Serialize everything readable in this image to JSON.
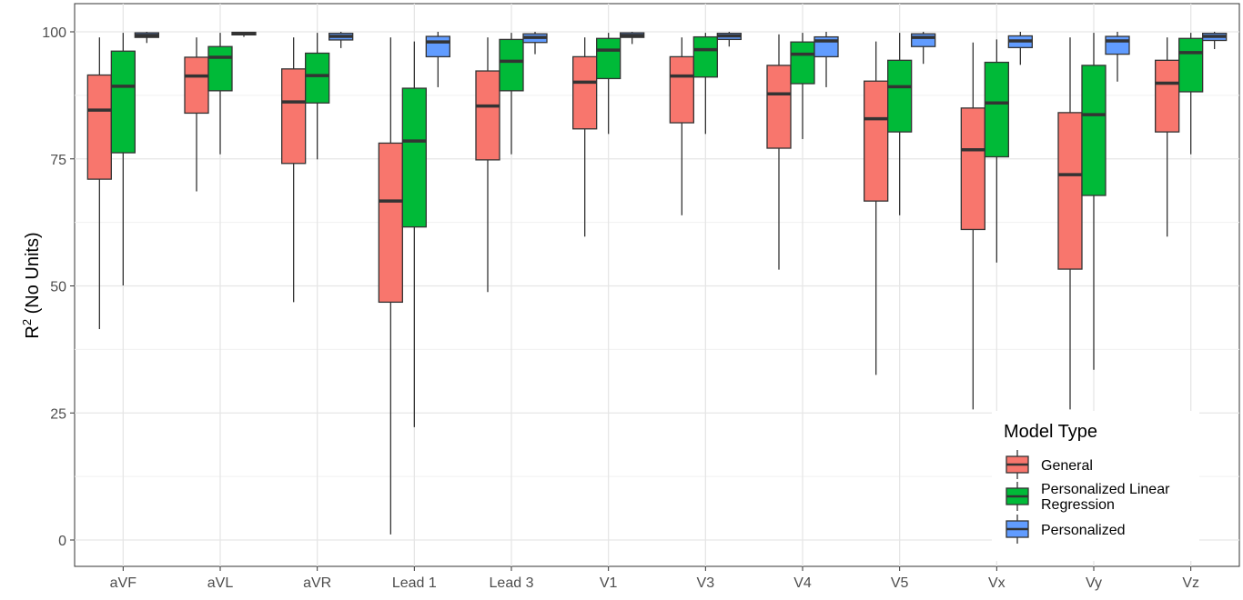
{
  "chart_data": {
    "type": "boxplot",
    "title": "",
    "xlabel": "",
    "ylabel_main": "R",
    "ylabel_sup": "2",
    "ylabel_rest": " (No Units)",
    "ylim": [
      0,
      100
    ],
    "yticks": [
      0,
      25,
      50,
      75,
      100
    ],
    "grid": true,
    "legend_position": "bottom-right",
    "legend_title": "Model Type",
    "categories": [
      "aVF",
      "aVL",
      "aVR",
      "Lead 1",
      "Lead 3",
      "V1",
      "V3",
      "V4",
      "V5",
      "Vx",
      "Vy",
      "Vz"
    ],
    "series": [
      {
        "name": "General",
        "color": "#F8766D",
        "boxes": [
          {
            "min": 41.5,
            "q1": 71,
            "median": 84.6,
            "q3": 91.5,
            "max": 98.9
          },
          {
            "min": 68.6,
            "q1": 84,
            "median": 91.3,
            "q3": 95,
            "max": 98.9
          },
          {
            "min": 46.8,
            "q1": 74.1,
            "median": 86.2,
            "q3": 92.7,
            "max": 98.9
          },
          {
            "min": 1.1,
            "q1": 46.8,
            "median": 66.7,
            "q3": 78.1,
            "max": 98.9
          },
          {
            "min": 48.8,
            "q1": 74.8,
            "median": 85.4,
            "q3": 92.3,
            "max": 98.9
          },
          {
            "min": 59.7,
            "q1": 80.9,
            "median": 90.1,
            "q3": 95.1,
            "max": 98.9
          },
          {
            "min": 63.9,
            "q1": 82.1,
            "median": 91.3,
            "q3": 95.1,
            "max": 98.9
          },
          {
            "min": 53.2,
            "q1": 77.1,
            "median": 87.8,
            "q3": 93.4,
            "max": 99.5
          },
          {
            "min": 32.5,
            "q1": 66.7,
            "median": 82.9,
            "q3": 90.3,
            "max": 98.1
          },
          {
            "min": 25.7,
            "q1": 61.1,
            "median": 76.8,
            "q3": 85,
            "max": 97.9
          },
          {
            "min": 25.7,
            "q1": 53.3,
            "median": 71.9,
            "q3": 84.1,
            "max": 98.9
          },
          {
            "min": 59.7,
            "q1": 80.3,
            "median": 89.9,
            "q3": 94.4,
            "max": 98.9
          }
        ]
      },
      {
        "name": "Personalized Linear Regression",
        "color": "#00BA38",
        "boxes": [
          {
            "min": 50.1,
            "q1": 76.2,
            "median": 89.3,
            "q3": 96.2,
            "max": 99.8
          },
          {
            "min": 75.9,
            "q1": 88.4,
            "median": 95,
            "q3": 97.1,
            "max": 99.8
          },
          {
            "min": 74.9,
            "q1": 86,
            "median": 91.4,
            "q3": 95.8,
            "max": 99.8
          },
          {
            "min": 22.2,
            "q1": 61.6,
            "median": 78.5,
            "q3": 88.9,
            "max": 98.1
          },
          {
            "min": 75.9,
            "q1": 88.4,
            "median": 94.2,
            "q3": 98.5,
            "max": 99.8
          },
          {
            "min": 79.9,
            "q1": 90.8,
            "median": 96.4,
            "q3": 98.7,
            "max": 99.8
          },
          {
            "min": 79.9,
            "q1": 91.1,
            "median": 96.5,
            "q3": 99,
            "max": 99.8
          },
          {
            "min": 78.9,
            "q1": 89.8,
            "median": 95.6,
            "q3": 98,
            "max": 99.8
          },
          {
            "min": 63.9,
            "q1": 80.3,
            "median": 89.2,
            "q3": 94.4,
            "max": 99.8
          },
          {
            "min": 54.6,
            "q1": 75.4,
            "median": 86,
            "q3": 94,
            "max": 98.5
          },
          {
            "min": 33.5,
            "q1": 67.8,
            "median": 83.7,
            "q3": 93.4,
            "max": 99.8
          },
          {
            "min": 75.9,
            "q1": 88.2,
            "median": 95.9,
            "q3": 98.7,
            "max": 99.8
          }
        ]
      },
      {
        "name": "Personalized",
        "color": "#619CFF",
        "boxes": [
          {
            "min": 97.8,
            "q1": 98.9,
            "median": 99.3,
            "q3": 99.8,
            "max": 100
          },
          {
            "min": 99,
            "q1": 99.4,
            "median": 99.6,
            "q3": 99.9,
            "max": 100
          },
          {
            "min": 96.8,
            "q1": 98.4,
            "median": 99.1,
            "q3": 99.7,
            "max": 100
          },
          {
            "min": 89.1,
            "q1": 95.1,
            "median": 98,
            "q3": 99.1,
            "max": 100
          },
          {
            "min": 95.6,
            "q1": 97.9,
            "median": 98.9,
            "q3": 99.6,
            "max": 100
          },
          {
            "min": 97.6,
            "q1": 98.9,
            "median": 99.3,
            "q3": 99.8,
            "max": 100
          },
          {
            "min": 97.1,
            "q1": 98.5,
            "median": 99.2,
            "q3": 99.7,
            "max": 100
          },
          {
            "min": 89.1,
            "q1": 95.1,
            "median": 98.2,
            "q3": 99,
            "max": 100
          },
          {
            "min": 93.7,
            "q1": 97.1,
            "median": 98.9,
            "q3": 99.6,
            "max": 100
          },
          {
            "min": 93.5,
            "q1": 96.9,
            "median": 98.2,
            "q3": 99.2,
            "max": 100
          },
          {
            "min": 90.2,
            "q1": 95.6,
            "median": 98.2,
            "q3": 99.1,
            "max": 100
          },
          {
            "min": 96.6,
            "q1": 98.3,
            "median": 99.1,
            "q3": 99.7,
            "max": 100
          }
        ]
      }
    ]
  }
}
